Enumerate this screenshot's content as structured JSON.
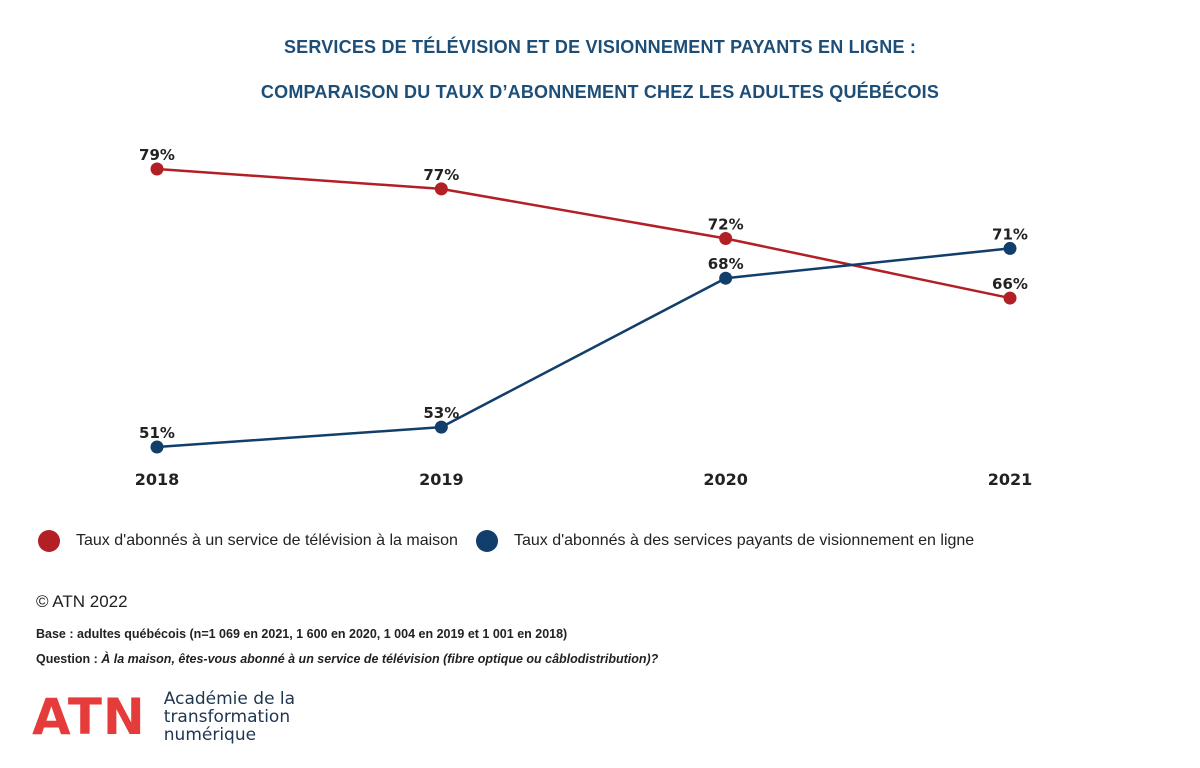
{
  "chart_data": {
    "type": "line",
    "title": "SERVICES DE TÉLÉVISION ET DE VISIONNEMENT PAYANTS EN LIGNE :",
    "subtitle": "COMPARAISON DU TAUX D’ABONNEMENT CHEZ LES ADULTES QUÉBÉCOIS",
    "xlabel": "",
    "ylabel": "",
    "categories": [
      "2018",
      "2019",
      "2020",
      "2021"
    ],
    "ylim": [
      51,
      79
    ],
    "grid": false,
    "legend_position": "bottom-left",
    "series": [
      {
        "name": "Taux d'abonnés à un service de télévision à la maison",
        "color": "#b22025",
        "values": [
          79,
          77,
          72,
          66
        ],
        "labels": [
          "79%",
          "77%",
          "72%",
          "66%"
        ]
      },
      {
        "name": "Taux d'abonnés à des services payants de visionnement en ligne",
        "color": "#123e6b",
        "values": [
          51,
          53,
          68,
          71
        ],
        "labels": [
          "51%",
          "53%",
          "68%",
          "71%"
        ]
      }
    ]
  },
  "footer": {
    "copyright": "© ATN 2022",
    "base": "Base : adultes québécois (n=1 069 en 2021, 1 600 en 2020, 1 004 en 2019 et 1 001 en 2018)",
    "question_label": "Question : ",
    "question_text": "À la maison, êtes-vous abonné à un service de télévision (fibre optique ou câblodistribution)?"
  },
  "logo": {
    "mark": "ATN",
    "line1": "Académie de la",
    "line2": "transformation",
    "line3": "numérique",
    "color": "#e63b3b"
  }
}
